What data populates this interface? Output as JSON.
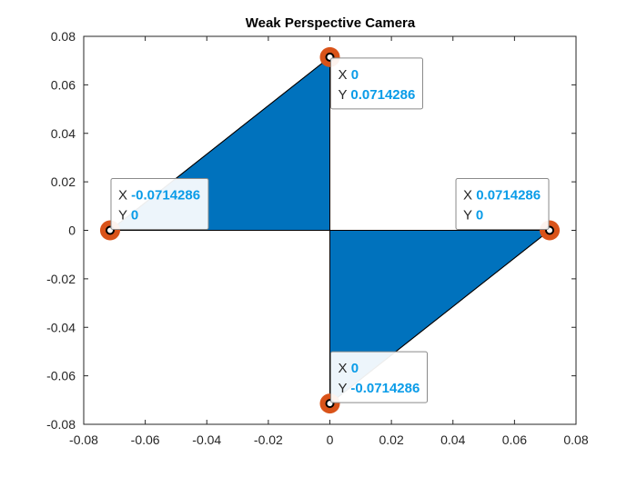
{
  "chart_data": {
    "type": "area",
    "title": "Weak Perspective Camera",
    "xlabel": "",
    "ylabel": "",
    "xlim": [
      -0.08,
      0.08
    ],
    "ylim": [
      -0.08,
      0.08
    ],
    "xticks": [
      -0.08,
      -0.06,
      -0.04,
      -0.02,
      0,
      0.02,
      0.04,
      0.06,
      0.08
    ],
    "xtick_labels": [
      "-0.08",
      "-0.06",
      "-0.04",
      "-0.02",
      "0",
      "0.02",
      "0.04",
      "0.06",
      "0.08"
    ],
    "yticks": [
      0.08,
      0.06,
      0.04,
      0.02,
      0,
      -0.02,
      -0.04,
      -0.06,
      -0.08
    ],
    "ytick_labels": [
      "0.08",
      "0.06",
      "0.04",
      "0.02",
      "0",
      "-0.02",
      "-0.04",
      "-0.06",
      "-0.08"
    ],
    "grid": false,
    "polygon": {
      "x": [
        -0.0714286,
        0,
        0,
        0,
        0.0714286,
        0,
        0
      ],
      "y": [
        0,
        0.0714286,
        0,
        -0.0714286,
        0,
        0,
        0
      ]
    },
    "triangles": [
      {
        "x": [
          -0.0714286,
          0,
          0
        ],
        "y": [
          0,
          0.0714286,
          0
        ]
      },
      {
        "x": [
          0.0714286,
          0,
          0
        ],
        "y": [
          0,
          -0.0714286,
          0
        ]
      }
    ],
    "points": [
      {
        "x": 0,
        "y": 0.0714286
      },
      {
        "x": -0.0714286,
        "y": 0
      },
      {
        "x": 0.0714286,
        "y": 0
      },
      {
        "x": 0,
        "y": -0.0714286
      }
    ],
    "datatips": [
      {
        "x_label": "X",
        "x_value": "0",
        "y_label": "Y",
        "y_value": "0.0714286",
        "anchor": "right-below"
      },
      {
        "x_label": "X",
        "x_value": "-0.0714286",
        "y_label": "Y",
        "y_value": "0",
        "anchor": "right-above"
      },
      {
        "x_label": "X",
        "x_value": "0.0714286",
        "y_label": "Y",
        "y_value": "0",
        "anchor": "left-above"
      },
      {
        "x_label": "X",
        "x_value": "0",
        "y_label": "Y",
        "y_value": "-0.0714286",
        "anchor": "right-above"
      }
    ],
    "colors": {
      "fill": "#0072BD",
      "marker": "#D95319",
      "tip_value": "#0A9CE8",
      "axes": "#262626"
    }
  }
}
